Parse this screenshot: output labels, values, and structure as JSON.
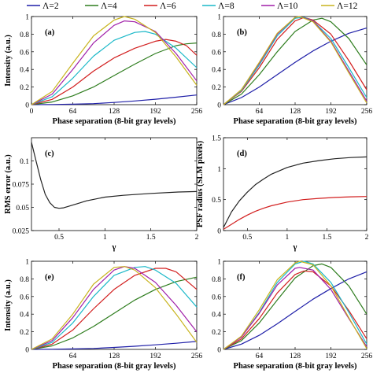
{
  "legend": {
    "entries": [
      {
        "label": "Λ=2",
        "color": "#1f1fa8"
      },
      {
        "label": "Λ=4",
        "color": "#2e7d1e"
      },
      {
        "label": "Λ=6",
        "color": "#d21f1f"
      },
      {
        "label": "Λ=8",
        "color": "#1ab8c8"
      },
      {
        "label": "Λ=10",
        "color": "#a01fa8"
      },
      {
        "label": "Λ=12",
        "color": "#c8b41e"
      }
    ]
  },
  "chart_data": [
    {
      "panel": "(a)",
      "type": "line",
      "xlabel": "Phase separation (8-bit gray levels)",
      "ylabel": "Intensity (a.u.)",
      "xlim": [
        0,
        256
      ],
      "ylim": [
        0,
        1
      ],
      "xticks": [
        0,
        64,
        128,
        192,
        256
      ],
      "yticks": [
        0,
        0.2,
        0.4,
        0.6,
        0.8,
        1
      ],
      "xtick_labels": [
        "0",
        "64",
        "128",
        "192",
        "256"
      ],
      "ytick_labels": [
        "0",
        "0.2",
        "0.4",
        "0.6",
        "0.8",
        "1"
      ],
      "series": [
        {
          "name": "Λ=2",
          "color": "#1f1fa8",
          "x": [
            0,
            32,
            64,
            96,
            128,
            160,
            192,
            224,
            256
          ],
          "y": [
            0,
            0.002,
            0.005,
            0.012,
            0.025,
            0.042,
            0.062,
            0.085,
            0.11
          ]
        },
        {
          "name": "Λ=4",
          "color": "#2e7d1e",
          "x": [
            0,
            32,
            64,
            96,
            128,
            160,
            192,
            224,
            240,
            256
          ],
          "y": [
            0,
            0.03,
            0.1,
            0.2,
            0.33,
            0.46,
            0.58,
            0.67,
            0.69,
            0.7
          ]
        },
        {
          "name": "Λ=6",
          "color": "#d21f1f",
          "x": [
            0,
            32,
            64,
            96,
            128,
            160,
            192,
            208,
            224,
            240,
            256
          ],
          "y": [
            0,
            0.06,
            0.2,
            0.38,
            0.53,
            0.64,
            0.72,
            0.74,
            0.72,
            0.67,
            0.56
          ]
        },
        {
          "name": "Λ=8",
          "color": "#1ab8c8",
          "x": [
            0,
            32,
            64,
            96,
            128,
            160,
            176,
            192,
            224,
            256
          ],
          "y": [
            0,
            0.09,
            0.3,
            0.55,
            0.73,
            0.82,
            0.83,
            0.8,
            0.64,
            0.42
          ]
        },
        {
          "name": "Λ=10",
          "color": "#a01fa8",
          "x": [
            0,
            32,
            64,
            96,
            128,
            144,
            160,
            192,
            224,
            256
          ],
          "y": [
            0,
            0.12,
            0.4,
            0.7,
            0.9,
            0.95,
            0.94,
            0.83,
            0.58,
            0.27
          ]
        },
        {
          "name": "Λ=12",
          "color": "#c8b41e",
          "x": [
            0,
            32,
            64,
            96,
            128,
            144,
            160,
            192,
            224,
            256
          ],
          "y": [
            0,
            0.15,
            0.47,
            0.78,
            0.96,
            1.0,
            0.97,
            0.82,
            0.54,
            0.22
          ]
        }
      ]
    },
    {
      "panel": "(b)",
      "type": "line",
      "xlabel": "Phase separation (8-bit gray levels)",
      "ylabel": "",
      "xlim": [
        0,
        256
      ],
      "ylim": [
        0,
        1
      ],
      "xticks": [
        64,
        128,
        192,
        256
      ],
      "yticks": [
        0,
        0.2,
        0.4,
        0.6,
        0.8,
        1
      ],
      "xtick_labels": [
        "64",
        "128",
        "192",
        "256"
      ],
      "ytick_labels": [
        "0",
        "0.2",
        "0.4",
        "0.6",
        "0.8",
        "1"
      ],
      "series": [
        {
          "name": "Λ=2",
          "color": "#1f1fa8",
          "x": [
            0,
            32,
            64,
            96,
            128,
            160,
            192,
            224,
            256
          ],
          "y": [
            0,
            0.08,
            0.2,
            0.34,
            0.48,
            0.61,
            0.72,
            0.81,
            0.87
          ]
        },
        {
          "name": "Λ=4",
          "color": "#2e7d1e",
          "x": [
            0,
            32,
            64,
            96,
            128,
            160,
            176,
            192,
            224,
            256
          ],
          "y": [
            0,
            0.12,
            0.34,
            0.6,
            0.83,
            0.96,
            0.98,
            0.94,
            0.75,
            0.45
          ]
        },
        {
          "name": "Λ=6",
          "color": "#d21f1f",
          "x": [
            0,
            32,
            64,
            96,
            128,
            144,
            160,
            192,
            224,
            256
          ],
          "y": [
            0,
            0.15,
            0.42,
            0.74,
            0.95,
            0.99,
            0.96,
            0.8,
            0.5,
            0.17
          ]
        },
        {
          "name": "Λ=8",
          "color": "#1ab8c8",
          "x": [
            0,
            32,
            64,
            96,
            128,
            144,
            160,
            192,
            224,
            256
          ],
          "y": [
            0,
            0.16,
            0.45,
            0.78,
            0.98,
            0.99,
            0.95,
            0.75,
            0.42,
            0.08
          ]
        },
        {
          "name": "Λ=10",
          "color": "#a01fa8",
          "x": [
            0,
            32,
            64,
            96,
            128,
            136,
            160,
            192,
            224,
            256
          ],
          "y": [
            0,
            0.17,
            0.47,
            0.8,
            0.99,
            1.0,
            0.95,
            0.72,
            0.38,
            0.04
          ]
        },
        {
          "name": "Λ=12",
          "color": "#c8b41e",
          "x": [
            0,
            32,
            64,
            96,
            128,
            136,
            160,
            192,
            224,
            256
          ],
          "y": [
            0,
            0.17,
            0.48,
            0.81,
            0.99,
            1.0,
            0.94,
            0.71,
            0.36,
            0.02
          ]
        }
      ]
    },
    {
      "panel": "(c)",
      "type": "line",
      "xlabel": "γ",
      "ylabel": "RMS error (a.u.)",
      "xlim": [
        0.2,
        2
      ],
      "ylim": [
        0.025,
        0.125
      ],
      "xticks": [
        0.5,
        1,
        1.5,
        2
      ],
      "yticks": [
        0.025,
        0.05,
        0.075,
        0.1
      ],
      "xtick_labels": [
        "0.5",
        "1",
        "1.5",
        "2"
      ],
      "ytick_labels": [
        "0.025",
        "0.05",
        "0.075",
        "0.1"
      ],
      "series": [
        {
          "color": "#222222",
          "x": [
            0.2,
            0.25,
            0.3,
            0.35,
            0.4,
            0.45,
            0.5,
            0.55,
            0.6,
            0.7,
            0.8,
            1.0,
            1.2,
            1.5,
            1.8,
            2.0
          ],
          "y": [
            0.12,
            0.1,
            0.08,
            0.064,
            0.055,
            0.05,
            0.049,
            0.0495,
            0.051,
            0.054,
            0.057,
            0.061,
            0.063,
            0.065,
            0.0665,
            0.067
          ]
        }
      ]
    },
    {
      "panel": "(d)",
      "type": "line",
      "xlabel": "γ",
      "ylabel": "PSF radius (SLM pixels)",
      "xlim": [
        0.2,
        2
      ],
      "ylim": [
        0,
        1.5
      ],
      "xticks": [
        0.5,
        1,
        1.5,
        2
      ],
      "yticks": [
        0,
        0.5,
        1,
        1.5
      ],
      "xtick_labels": [
        "0.5",
        "1",
        "1.5",
        "2"
      ],
      "ytick_labels": [
        "0",
        "0.5",
        "1",
        "1.5"
      ],
      "series": [
        {
          "color": "#222222",
          "x": [
            0.2,
            0.3,
            0.4,
            0.5,
            0.6,
            0.7,
            0.8,
            1.0,
            1.2,
            1.4,
            1.6,
            1.8,
            2.0
          ],
          "y": [
            0.05,
            0.3,
            0.48,
            0.62,
            0.74,
            0.83,
            0.91,
            1.02,
            1.09,
            1.13,
            1.16,
            1.18,
            1.19
          ]
        },
        {
          "color": "#d21f1f",
          "x": [
            0.2,
            0.3,
            0.4,
            0.5,
            0.6,
            0.7,
            0.8,
            1.0,
            1.2,
            1.4,
            1.6,
            1.8,
            2.0
          ],
          "y": [
            0.02,
            0.1,
            0.18,
            0.25,
            0.31,
            0.36,
            0.4,
            0.46,
            0.5,
            0.52,
            0.535,
            0.545,
            0.55
          ]
        }
      ]
    },
    {
      "panel": "(e)",
      "type": "line",
      "xlabel": "Phase separation (8-bit gray levels)",
      "ylabel": "Intensity (a.u.)",
      "xlim": [
        0,
        256
      ],
      "ylim": [
        0,
        1
      ],
      "xticks": [
        64,
        128,
        192,
        256
      ],
      "yticks": [
        0,
        0.2,
        0.4,
        0.6,
        0.8,
        1
      ],
      "xtick_labels": [
        "64",
        "128",
        "192",
        "256"
      ],
      "ytick_labels": [
        "0",
        "0.2",
        "0.4",
        "0.6",
        "0.8",
        "1"
      ],
      "series": [
        {
          "name": "Λ=2",
          "color": "#1f1fa8",
          "x": [
            0,
            32,
            64,
            96,
            128,
            160,
            192,
            224,
            256
          ],
          "y": [
            0,
            0.002,
            0.005,
            0.011,
            0.022,
            0.036,
            0.052,
            0.07,
            0.09
          ]
        },
        {
          "name": "Λ=4",
          "color": "#2e7d1e",
          "x": [
            0,
            32,
            64,
            96,
            128,
            160,
            192,
            224,
            256
          ],
          "y": [
            0,
            0.04,
            0.13,
            0.26,
            0.41,
            0.56,
            0.68,
            0.77,
            0.82
          ]
        },
        {
          "name": "Λ=6",
          "color": "#d21f1f",
          "x": [
            0,
            32,
            64,
            96,
            128,
            160,
            192,
            208,
            224,
            256
          ],
          "y": [
            0,
            0.06,
            0.22,
            0.46,
            0.68,
            0.84,
            0.92,
            0.92,
            0.88,
            0.68
          ]
        },
        {
          "name": "Λ=8",
          "color": "#1ab8c8",
          "x": [
            0,
            32,
            64,
            96,
            128,
            160,
            176,
            192,
            224,
            256
          ],
          "y": [
            0,
            0.08,
            0.3,
            0.6,
            0.84,
            0.93,
            0.94,
            0.9,
            0.75,
            0.48
          ]
        },
        {
          "name": "Λ=10",
          "color": "#a01fa8",
          "x": [
            0,
            32,
            64,
            96,
            128,
            144,
            160,
            192,
            224,
            256
          ],
          "y": [
            0,
            0.1,
            0.36,
            0.68,
            0.9,
            0.94,
            0.92,
            0.76,
            0.5,
            0.2
          ]
        },
        {
          "name": "Λ=12",
          "color": "#c8b41e",
          "x": [
            0,
            32,
            64,
            96,
            128,
            144,
            160,
            192,
            224,
            256
          ],
          "y": [
            0,
            0.12,
            0.4,
            0.74,
            0.93,
            0.94,
            0.9,
            0.7,
            0.4,
            0.08
          ]
        }
      ]
    },
    {
      "panel": "(f)",
      "type": "line",
      "xlabel": "Phase separation (8-bit gray levels)",
      "ylabel": "",
      "xlim": [
        0,
        256
      ],
      "ylim": [
        0,
        1
      ],
      "xticks": [
        64,
        128,
        192,
        256
      ],
      "yticks": [
        0,
        0.2,
        0.4,
        0.6,
        0.8,
        1
      ],
      "xtick_labels": [
        "64",
        "128",
        "192",
        "256"
      ],
      "ytick_labels": [
        "0",
        "0.2",
        "0.4",
        "0.6",
        "0.8",
        "1"
      ],
      "series": [
        {
          "name": "Λ=2",
          "color": "#1f1fa8",
          "x": [
            0,
            32,
            64,
            96,
            128,
            160,
            192,
            224,
            256
          ],
          "y": [
            0,
            0.06,
            0.16,
            0.29,
            0.43,
            0.57,
            0.69,
            0.8,
            0.88
          ]
        },
        {
          "name": "Λ=4",
          "color": "#2e7d1e",
          "x": [
            0,
            32,
            64,
            96,
            128,
            160,
            176,
            192,
            224,
            256
          ],
          "y": [
            0,
            0.1,
            0.3,
            0.56,
            0.81,
            0.95,
            0.97,
            0.93,
            0.72,
            0.4
          ]
        },
        {
          "name": "Λ=6",
          "color": "#d21f1f",
          "x": [
            0,
            32,
            64,
            96,
            128,
            144,
            160,
            192,
            224,
            256
          ],
          "y": [
            0,
            0.12,
            0.35,
            0.64,
            0.85,
            0.89,
            0.88,
            0.72,
            0.44,
            0.12
          ]
        },
        {
          "name": "Λ=8",
          "color": "#1ab8c8",
          "x": [
            0,
            32,
            64,
            96,
            128,
            144,
            160,
            192,
            224,
            256
          ],
          "y": [
            0,
            0.14,
            0.42,
            0.76,
            0.97,
            1.0,
            0.97,
            0.76,
            0.42,
            0.06
          ]
        },
        {
          "name": "Λ=10",
          "color": "#a01fa8",
          "x": [
            0,
            32,
            64,
            96,
            128,
            136,
            160,
            192,
            224,
            256
          ],
          "y": [
            0,
            0.14,
            0.41,
            0.73,
            0.92,
            0.93,
            0.9,
            0.68,
            0.35,
            0.03
          ]
        },
        {
          "name": "Λ=12",
          "color": "#c8b41e",
          "x": [
            0,
            32,
            64,
            96,
            128,
            136,
            160,
            192,
            224,
            256
          ],
          "y": [
            0,
            0.15,
            0.45,
            0.79,
            0.98,
            1.0,
            0.96,
            0.72,
            0.36,
            0.01
          ]
        }
      ]
    }
  ]
}
